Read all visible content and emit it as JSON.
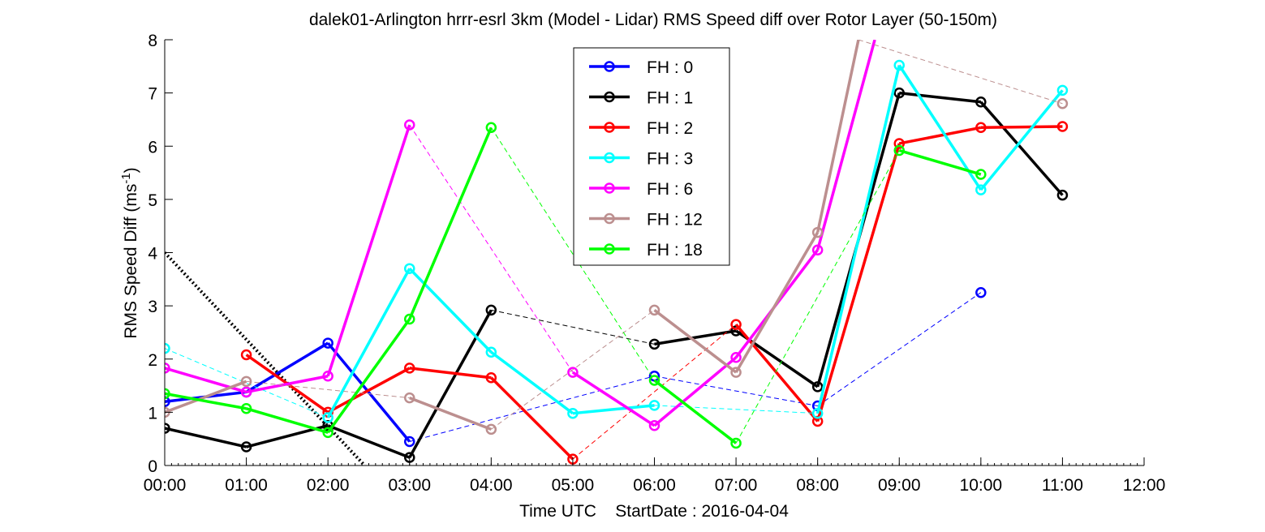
{
  "chart_data": {
    "type": "line",
    "title": "dalek01-Arlington hrrr-esrl 3km (Model - Lidar) RMS Speed diff over Rotor Layer (50-150m)",
    "xlabel": "Time UTC    StartDate : 2016-04-04",
    "ylabel": "RMS Speed Diff (ms",
    "ylabel_sup": "-1",
    "ylabel_close": ")",
    "xlim": [
      0,
      12
    ],
    "ylim": [
      0,
      8
    ],
    "x_ticks": [
      0,
      1,
      2,
      3,
      4,
      5,
      6,
      7,
      8,
      9,
      10,
      11,
      12
    ],
    "x_tick_labels": [
      "00:00",
      "01:00",
      "02:00",
      "03:00",
      "04:00",
      "05:00",
      "06:00",
      "07:00",
      "08:00",
      "09:00",
      "10:00",
      "11:00",
      "12:00"
    ],
    "y_ticks": [
      0,
      1,
      2,
      3,
      4,
      5,
      6,
      7,
      8
    ],
    "y_tick_labels": [
      "0",
      "1",
      "2",
      "3",
      "4",
      "5",
      "6",
      "7",
      "8"
    ],
    "legend_position": "top-center",
    "reference_line": {
      "style": "dotted",
      "color": "#000000",
      "x": [
        0,
        2.45
      ],
      "y": [
        4.0,
        0
      ]
    },
    "series": [
      {
        "name": "FH : 0",
        "color": "#0000ff",
        "x": [
          0,
          1,
          2,
          3,
          6,
          8,
          10
        ],
        "y": [
          1.2,
          1.38,
          2.3,
          0.45,
          1.68,
          1.12,
          3.25
        ]
      },
      {
        "name": "FH : 1",
        "color": "#000000",
        "x": [
          0,
          1,
          2,
          3,
          4,
          6,
          7,
          8,
          9,
          10,
          11
        ],
        "y": [
          0.7,
          0.35,
          0.75,
          0.15,
          2.92,
          2.28,
          2.53,
          1.48,
          7.0,
          6.83,
          5.08
        ]
      },
      {
        "name": "FH : 2",
        "color": "#ff0000",
        "x": [
          1,
          2,
          3,
          4,
          5,
          7,
          8,
          9,
          10,
          11
        ],
        "y": [
          2.08,
          1.0,
          1.83,
          1.65,
          0.12,
          2.65,
          0.83,
          6.05,
          6.35,
          6.37
        ]
      },
      {
        "name": "FH : 3",
        "color": "#00ffff",
        "x": [
          0,
          2,
          3,
          4,
          5,
          6,
          8,
          9,
          10,
          11
        ],
        "y": [
          2.2,
          0.9,
          3.7,
          2.13,
          0.98,
          1.13,
          0.98,
          7.52,
          5.18,
          7.05
        ]
      },
      {
        "name": "FH : 6",
        "color": "#ff00ff",
        "x": [
          0,
          1,
          2,
          3,
          5,
          6,
          7,
          8,
          8.7
        ],
        "y": [
          1.83,
          1.38,
          1.68,
          6.4,
          1.75,
          0.75,
          2.03,
          4.05,
          8.0
        ]
      },
      {
        "name": "FH : 12",
        "color": "#bc8f8f",
        "x": [
          0,
          1,
          3,
          4,
          6,
          7,
          8,
          8.5,
          11
        ],
        "y": [
          1.0,
          1.58,
          1.27,
          0.68,
          2.92,
          1.75,
          4.38,
          8.0,
          6.8
        ]
      },
      {
        "name": "FH : 18",
        "color": "#00ff00",
        "x": [
          0,
          1,
          2,
          3,
          4,
          6,
          7,
          9,
          10
        ],
        "y": [
          1.35,
          1.07,
          0.62,
          2.75,
          6.35,
          1.6,
          0.42,
          5.92,
          5.47
        ]
      }
    ]
  }
}
